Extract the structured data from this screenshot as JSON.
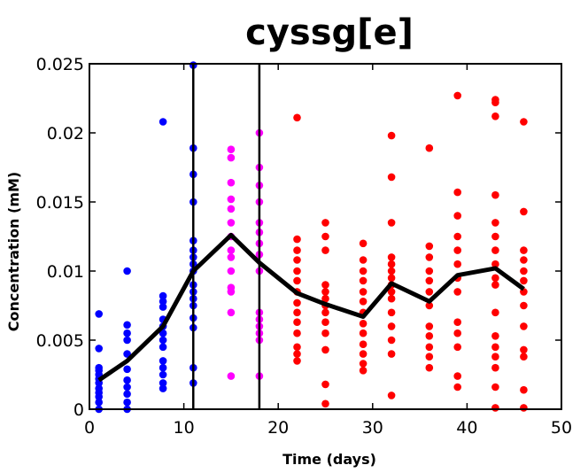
{
  "chart_data": {
    "type": "scatter",
    "title": "cyssg[e]",
    "xlabel": "Time (days)",
    "ylabel": "Concentration (mM)",
    "xlim": [
      0,
      50
    ],
    "ylim": [
      0,
      0.025
    ],
    "xticks": [
      0,
      10,
      20,
      30,
      40,
      50
    ],
    "xtick_labels": [
      "0",
      "10",
      "20",
      "30",
      "40",
      "50"
    ],
    "yticks": [
      0,
      0.005,
      0.01,
      0.015,
      0.02,
      0.025
    ],
    "ytick_labels": [
      "0",
      "0.005",
      "0.01",
      "0.015",
      "0.02",
      "0.025"
    ],
    "grid": false,
    "legend": "none",
    "phase_boundaries": [
      11,
      18
    ],
    "series": [
      {
        "color": "#0000ff",
        "points": [
          [
            1,
            0.0069
          ],
          [
            1,
            0.0044
          ],
          [
            1,
            0.003
          ],
          [
            1,
            0.0028
          ],
          [
            1,
            0.0025
          ],
          [
            1,
            0.0022
          ],
          [
            1,
            0.0019
          ],
          [
            1,
            0.0015
          ],
          [
            1,
            0.0012
          ],
          [
            1,
            0.0009
          ],
          [
            1,
            0.0005
          ],
          [
            1,
            0.0
          ],
          [
            4,
            0.01
          ],
          [
            4,
            0.0061
          ],
          [
            4,
            0.0055
          ],
          [
            4,
            0.005
          ],
          [
            4,
            0.004
          ],
          [
            4,
            0.0029
          ],
          [
            4,
            0.0021
          ],
          [
            4,
            0.0016
          ],
          [
            4,
            0.0011
          ],
          [
            4,
            0.0005
          ],
          [
            4,
            0.0
          ],
          [
            7.8,
            0.0208
          ],
          [
            7.8,
            0.0082
          ],
          [
            7.8,
            0.0078
          ],
          [
            7.8,
            0.0074
          ],
          [
            7.8,
            0.0065
          ],
          [
            7.8,
            0.006
          ],
          [
            7.8,
            0.0055
          ],
          [
            7.8,
            0.005
          ],
          [
            7.8,
            0.0045
          ],
          [
            7.8,
            0.0035
          ],
          [
            7.8,
            0.003
          ],
          [
            7.8,
            0.0025
          ],
          [
            7.8,
            0.0019
          ],
          [
            7.8,
            0.0015
          ],
          [
            11,
            0.0249
          ],
          [
            11,
            0.0189
          ],
          [
            11,
            0.017
          ],
          [
            11,
            0.015
          ],
          [
            11,
            0.0122
          ],
          [
            11,
            0.0115
          ],
          [
            11,
            0.011
          ],
          [
            11,
            0.0105
          ],
          [
            11,
            0.01
          ],
          [
            11,
            0.009
          ],
          [
            11,
            0.0085
          ],
          [
            11,
            0.008
          ],
          [
            11,
            0.0075
          ],
          [
            11,
            0.0066
          ],
          [
            11,
            0.0059
          ],
          [
            11,
            0.003
          ],
          [
            11,
            0.0019
          ]
        ]
      },
      {
        "color": "#ff00ff",
        "points": [
          [
            15,
            0.0188
          ],
          [
            15,
            0.0182
          ],
          [
            15,
            0.0164
          ],
          [
            15,
            0.0152
          ],
          [
            15,
            0.0145
          ],
          [
            15,
            0.0135
          ],
          [
            15,
            0.0125
          ],
          [
            15,
            0.0115
          ],
          [
            15,
            0.011
          ],
          [
            15,
            0.01
          ],
          [
            15,
            0.0088
          ],
          [
            15,
            0.0085
          ],
          [
            15,
            0.007
          ],
          [
            15,
            0.0024
          ],
          [
            18,
            0.02
          ],
          [
            18,
            0.0175
          ],
          [
            18,
            0.0162
          ],
          [
            18,
            0.015
          ],
          [
            18,
            0.0135
          ],
          [
            18,
            0.0128
          ],
          [
            18,
            0.012
          ],
          [
            18,
            0.0112
          ],
          [
            18,
            0.01
          ],
          [
            18,
            0.007
          ],
          [
            18,
            0.0065
          ],
          [
            18,
            0.006
          ],
          [
            18,
            0.0055
          ],
          [
            18,
            0.005
          ],
          [
            18,
            0.0024
          ]
        ]
      },
      {
        "color": "#ff0000",
        "points": [
          [
            22,
            0.0211
          ],
          [
            22,
            0.0123
          ],
          [
            22,
            0.0115
          ],
          [
            22,
            0.0108
          ],
          [
            22,
            0.01
          ],
          [
            22,
            0.0093
          ],
          [
            22,
            0.0085
          ],
          [
            22,
            0.0077
          ],
          [
            22,
            0.007
          ],
          [
            22,
            0.0063
          ],
          [
            22,
            0.0055
          ],
          [
            22,
            0.0045
          ],
          [
            22,
            0.004
          ],
          [
            22,
            0.0035
          ],
          [
            25,
            0.0135
          ],
          [
            25,
            0.0125
          ],
          [
            25,
            0.0115
          ],
          [
            25,
            0.009
          ],
          [
            25,
            0.0085
          ],
          [
            25,
            0.008
          ],
          [
            25,
            0.0075
          ],
          [
            25,
            0.007
          ],
          [
            25,
            0.0063
          ],
          [
            25,
            0.0055
          ],
          [
            25,
            0.0043
          ],
          [
            25,
            0.0018
          ],
          [
            25,
            0.0004
          ],
          [
            29,
            0.012
          ],
          [
            29,
            0.0108
          ],
          [
            29,
            0.01
          ],
          [
            29,
            0.0093
          ],
          [
            29,
            0.0085
          ],
          [
            29,
            0.0078
          ],
          [
            29,
            0.007
          ],
          [
            29,
            0.0062
          ],
          [
            29,
            0.0055
          ],
          [
            29,
            0.0047
          ],
          [
            29,
            0.004
          ],
          [
            29,
            0.0033
          ],
          [
            29,
            0.0028
          ],
          [
            32,
            0.0198
          ],
          [
            32,
            0.0168
          ],
          [
            32,
            0.0135
          ],
          [
            32,
            0.011
          ],
          [
            32,
            0.0105
          ],
          [
            32,
            0.01
          ],
          [
            32,
            0.0095
          ],
          [
            32,
            0.009
          ],
          [
            32,
            0.0085
          ],
          [
            32,
            0.008
          ],
          [
            32,
            0.007
          ],
          [
            32,
            0.006
          ],
          [
            32,
            0.005
          ],
          [
            32,
            0.004
          ],
          [
            32,
            0.001
          ],
          [
            36,
            0.0189
          ],
          [
            36,
            0.0118
          ],
          [
            36,
            0.011
          ],
          [
            36,
            0.01
          ],
          [
            36,
            0.0093
          ],
          [
            36,
            0.0085
          ],
          [
            36,
            0.0075
          ],
          [
            36,
            0.006
          ],
          [
            36,
            0.0053
          ],
          [
            36,
            0.0045
          ],
          [
            36,
            0.0038
          ],
          [
            36,
            0.003
          ],
          [
            39,
            0.0227
          ],
          [
            39,
            0.0157
          ],
          [
            39,
            0.014
          ],
          [
            39,
            0.0125
          ],
          [
            39,
            0.0115
          ],
          [
            39,
            0.0105
          ],
          [
            39,
            0.0095
          ],
          [
            39,
            0.0085
          ],
          [
            39,
            0.0063
          ],
          [
            39,
            0.0055
          ],
          [
            39,
            0.0045
          ],
          [
            39,
            0.0024
          ],
          [
            39,
            0.0016
          ],
          [
            43,
            0.0224
          ],
          [
            43,
            0.0222
          ],
          [
            43,
            0.0212
          ],
          [
            43,
            0.0155
          ],
          [
            43,
            0.0135
          ],
          [
            43,
            0.0125
          ],
          [
            43,
            0.0115
          ],
          [
            43,
            0.0105
          ],
          [
            43,
            0.0095
          ],
          [
            43,
            0.009
          ],
          [
            43,
            0.007
          ],
          [
            43,
            0.0053
          ],
          [
            43,
            0.0045
          ],
          [
            43,
            0.0038
          ],
          [
            43,
            0.003
          ],
          [
            43,
            0.0016
          ],
          [
            43,
            0.0001
          ],
          [
            46,
            0.0208
          ],
          [
            46,
            0.0143
          ],
          [
            46,
            0.0115
          ],
          [
            46,
            0.0108
          ],
          [
            46,
            0.01
          ],
          [
            46,
            0.0093
          ],
          [
            46,
            0.0085
          ],
          [
            46,
            0.0075
          ],
          [
            46,
            0.006
          ],
          [
            46,
            0.0043
          ],
          [
            46,
            0.0038
          ],
          [
            46,
            0.0014
          ],
          [
            46,
            0.0001
          ]
        ]
      },
      {
        "color": "#000000",
        "style": "line",
        "points": [
          [
            1,
            0.0021
          ],
          [
            4,
            0.0035
          ],
          [
            7.8,
            0.006
          ],
          [
            11,
            0.01
          ],
          [
            15,
            0.0126
          ],
          [
            18,
            0.0106
          ],
          [
            22,
            0.0084
          ],
          [
            25,
            0.0076
          ],
          [
            29,
            0.0067
          ],
          [
            32,
            0.0091
          ],
          [
            36,
            0.0078
          ],
          [
            39,
            0.0097
          ],
          [
            43,
            0.0102
          ],
          [
            46,
            0.0087
          ]
        ]
      }
    ]
  }
}
